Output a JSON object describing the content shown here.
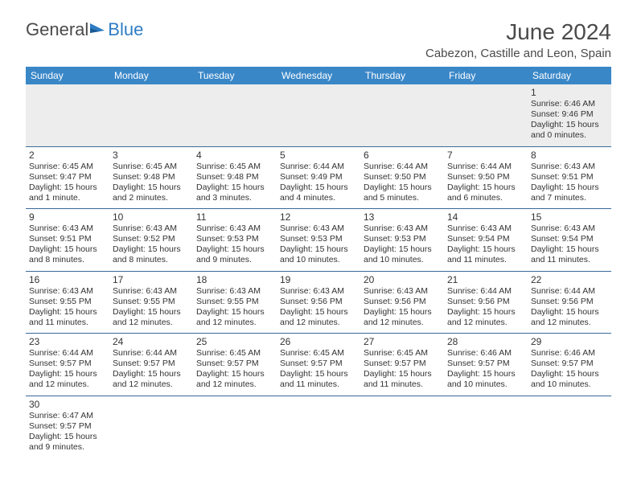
{
  "logo": {
    "general": "General",
    "blue": "Blue"
  },
  "title": "June 2024",
  "location": "Cabezon, Castille and Leon, Spain",
  "colors": {
    "header_bg": "#3a87c8",
    "header_text": "#ffffff",
    "row_border": "#3a6a9a",
    "first_row_bg": "#ededed",
    "text": "#333333",
    "title_color": "#4a4a4a",
    "logo_gray": "#4a4a4a",
    "logo_blue": "#2e7cc4"
  },
  "weekdays": [
    "Sunday",
    "Monday",
    "Tuesday",
    "Wednesday",
    "Thursday",
    "Friday",
    "Saturday"
  ],
  "weeks": [
    [
      null,
      null,
      null,
      null,
      null,
      null,
      {
        "n": "1",
        "sr": "Sunrise: 6:46 AM",
        "ss": "Sunset: 9:46 PM",
        "d1": "Daylight: 15 hours",
        "d2": "and 0 minutes."
      }
    ],
    [
      {
        "n": "2",
        "sr": "Sunrise: 6:45 AM",
        "ss": "Sunset: 9:47 PM",
        "d1": "Daylight: 15 hours",
        "d2": "and 1 minute."
      },
      {
        "n": "3",
        "sr": "Sunrise: 6:45 AM",
        "ss": "Sunset: 9:48 PM",
        "d1": "Daylight: 15 hours",
        "d2": "and 2 minutes."
      },
      {
        "n": "4",
        "sr": "Sunrise: 6:45 AM",
        "ss": "Sunset: 9:48 PM",
        "d1": "Daylight: 15 hours",
        "d2": "and 3 minutes."
      },
      {
        "n": "5",
        "sr": "Sunrise: 6:44 AM",
        "ss": "Sunset: 9:49 PM",
        "d1": "Daylight: 15 hours",
        "d2": "and 4 minutes."
      },
      {
        "n": "6",
        "sr": "Sunrise: 6:44 AM",
        "ss": "Sunset: 9:50 PM",
        "d1": "Daylight: 15 hours",
        "d2": "and 5 minutes."
      },
      {
        "n": "7",
        "sr": "Sunrise: 6:44 AM",
        "ss": "Sunset: 9:50 PM",
        "d1": "Daylight: 15 hours",
        "d2": "and 6 minutes."
      },
      {
        "n": "8",
        "sr": "Sunrise: 6:43 AM",
        "ss": "Sunset: 9:51 PM",
        "d1": "Daylight: 15 hours",
        "d2": "and 7 minutes."
      }
    ],
    [
      {
        "n": "9",
        "sr": "Sunrise: 6:43 AM",
        "ss": "Sunset: 9:51 PM",
        "d1": "Daylight: 15 hours",
        "d2": "and 8 minutes."
      },
      {
        "n": "10",
        "sr": "Sunrise: 6:43 AM",
        "ss": "Sunset: 9:52 PM",
        "d1": "Daylight: 15 hours",
        "d2": "and 8 minutes."
      },
      {
        "n": "11",
        "sr": "Sunrise: 6:43 AM",
        "ss": "Sunset: 9:53 PM",
        "d1": "Daylight: 15 hours",
        "d2": "and 9 minutes."
      },
      {
        "n": "12",
        "sr": "Sunrise: 6:43 AM",
        "ss": "Sunset: 9:53 PM",
        "d1": "Daylight: 15 hours",
        "d2": "and 10 minutes."
      },
      {
        "n": "13",
        "sr": "Sunrise: 6:43 AM",
        "ss": "Sunset: 9:53 PM",
        "d1": "Daylight: 15 hours",
        "d2": "and 10 minutes."
      },
      {
        "n": "14",
        "sr": "Sunrise: 6:43 AM",
        "ss": "Sunset: 9:54 PM",
        "d1": "Daylight: 15 hours",
        "d2": "and 11 minutes."
      },
      {
        "n": "15",
        "sr": "Sunrise: 6:43 AM",
        "ss": "Sunset: 9:54 PM",
        "d1": "Daylight: 15 hours",
        "d2": "and 11 minutes."
      }
    ],
    [
      {
        "n": "16",
        "sr": "Sunrise: 6:43 AM",
        "ss": "Sunset: 9:55 PM",
        "d1": "Daylight: 15 hours",
        "d2": "and 11 minutes."
      },
      {
        "n": "17",
        "sr": "Sunrise: 6:43 AM",
        "ss": "Sunset: 9:55 PM",
        "d1": "Daylight: 15 hours",
        "d2": "and 12 minutes."
      },
      {
        "n": "18",
        "sr": "Sunrise: 6:43 AM",
        "ss": "Sunset: 9:55 PM",
        "d1": "Daylight: 15 hours",
        "d2": "and 12 minutes."
      },
      {
        "n": "19",
        "sr": "Sunrise: 6:43 AM",
        "ss": "Sunset: 9:56 PM",
        "d1": "Daylight: 15 hours",
        "d2": "and 12 minutes."
      },
      {
        "n": "20",
        "sr": "Sunrise: 6:43 AM",
        "ss": "Sunset: 9:56 PM",
        "d1": "Daylight: 15 hours",
        "d2": "and 12 minutes."
      },
      {
        "n": "21",
        "sr": "Sunrise: 6:44 AM",
        "ss": "Sunset: 9:56 PM",
        "d1": "Daylight: 15 hours",
        "d2": "and 12 minutes."
      },
      {
        "n": "22",
        "sr": "Sunrise: 6:44 AM",
        "ss": "Sunset: 9:56 PM",
        "d1": "Daylight: 15 hours",
        "d2": "and 12 minutes."
      }
    ],
    [
      {
        "n": "23",
        "sr": "Sunrise: 6:44 AM",
        "ss": "Sunset: 9:57 PM",
        "d1": "Daylight: 15 hours",
        "d2": "and 12 minutes."
      },
      {
        "n": "24",
        "sr": "Sunrise: 6:44 AM",
        "ss": "Sunset: 9:57 PM",
        "d1": "Daylight: 15 hours",
        "d2": "and 12 minutes."
      },
      {
        "n": "25",
        "sr": "Sunrise: 6:45 AM",
        "ss": "Sunset: 9:57 PM",
        "d1": "Daylight: 15 hours",
        "d2": "and 12 minutes."
      },
      {
        "n": "26",
        "sr": "Sunrise: 6:45 AM",
        "ss": "Sunset: 9:57 PM",
        "d1": "Daylight: 15 hours",
        "d2": "and 11 minutes."
      },
      {
        "n": "27",
        "sr": "Sunrise: 6:45 AM",
        "ss": "Sunset: 9:57 PM",
        "d1": "Daylight: 15 hours",
        "d2": "and 11 minutes."
      },
      {
        "n": "28",
        "sr": "Sunrise: 6:46 AM",
        "ss": "Sunset: 9:57 PM",
        "d1": "Daylight: 15 hours",
        "d2": "and 10 minutes."
      },
      {
        "n": "29",
        "sr": "Sunrise: 6:46 AM",
        "ss": "Sunset: 9:57 PM",
        "d1": "Daylight: 15 hours",
        "d2": "and 10 minutes."
      }
    ],
    [
      {
        "n": "30",
        "sr": "Sunrise: 6:47 AM",
        "ss": "Sunset: 9:57 PM",
        "d1": "Daylight: 15 hours",
        "d2": "and 9 minutes."
      },
      null,
      null,
      null,
      null,
      null,
      null
    ]
  ]
}
